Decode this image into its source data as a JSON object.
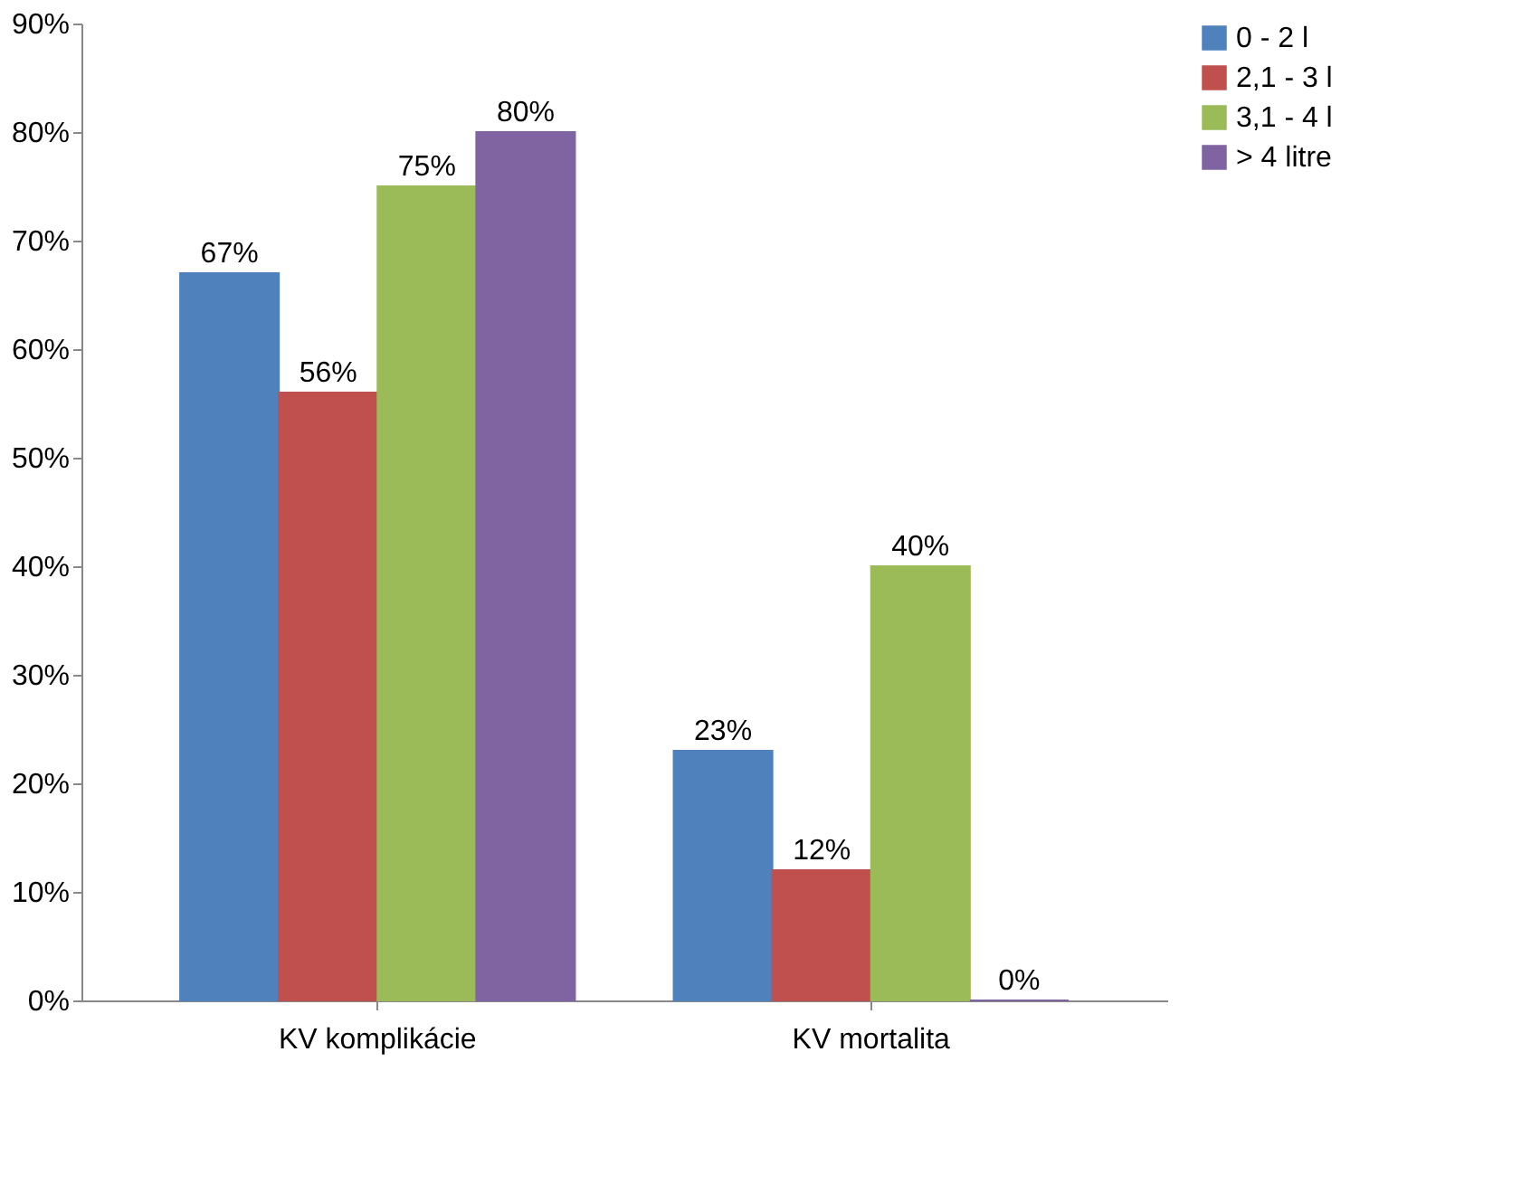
{
  "chart_data": {
    "type": "bar",
    "categories": [
      "KV komplikácie",
      "KV mortalita"
    ],
    "series": [
      {
        "name": "0 - 2 l",
        "color": "#4f81bd",
        "values": [
          67,
          23
        ],
        "value_labels": [
          "67%",
          "23%"
        ]
      },
      {
        "name": "2,1 - 3 l",
        "color": "#c0504d",
        "values": [
          56,
          12
        ],
        "value_labels": [
          "56%",
          "12%"
        ]
      },
      {
        "name": "3,1 - 4 l",
        "color": "#9bbb59",
        "values": [
          75,
          40
        ],
        "value_labels": [
          "75%",
          "40%"
        ]
      },
      {
        "name": "> 4 litre",
        "color": "#8064a2",
        "values": [
          80,
          0
        ],
        "value_labels": [
          "80%",
          "0%"
        ]
      }
    ],
    "ylim": [
      0,
      90
    ],
    "yticks": [
      {
        "value": 0,
        "label": "0%"
      },
      {
        "value": 10,
        "label": "10%"
      },
      {
        "value": 20,
        "label": "20%"
      },
      {
        "value": 30,
        "label": "30%"
      },
      {
        "value": 40,
        "label": "40%"
      },
      {
        "value": 50,
        "label": "50%"
      },
      {
        "value": 60,
        "label": "60%"
      },
      {
        "value": 70,
        "label": "70%"
      },
      {
        "value": 80,
        "label": "80%"
      },
      {
        "value": 90,
        "label": "90%"
      }
    ],
    "grid": false,
    "legend": "right"
  }
}
